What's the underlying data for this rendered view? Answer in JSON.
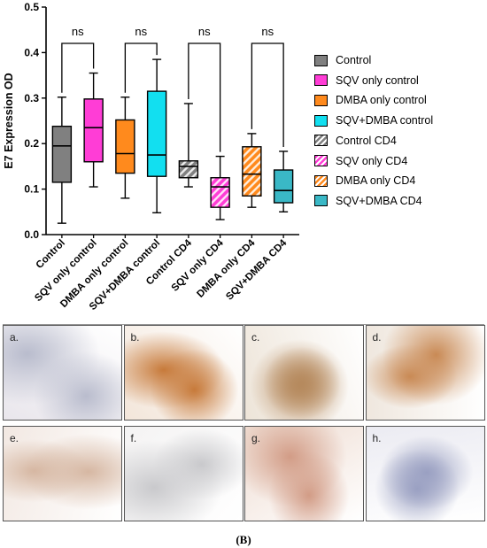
{
  "chart_data": {
    "type": "box",
    "ylabel": "E7 Expression OD",
    "ylim": [
      0,
      0.5
    ],
    "yticks": [
      "0.0",
      "0.1",
      "0.2",
      "0.3",
      "0.4",
      "0.5"
    ],
    "categories": [
      "Control",
      "SQV only control",
      "DMBA only control",
      "SQV+DMBA control",
      "Control CD4",
      "SQV only CD4",
      "DMBA only CD4",
      "SQV+DMBA CD4"
    ],
    "series": [
      {
        "name": "Control",
        "color": "#808080",
        "pattern": "solid",
        "min": 0.025,
        "q1": 0.115,
        "median": 0.195,
        "q3": 0.238,
        "max": 0.302
      },
      {
        "name": "SQV only control",
        "color": "#ff3dd6",
        "pattern": "solid",
        "min": 0.105,
        "q1": 0.16,
        "median": 0.235,
        "q3": 0.298,
        "max": 0.355
      },
      {
        "name": "DMBA only control",
        "color": "#ff8a1d",
        "pattern": "solid",
        "min": 0.08,
        "q1": 0.135,
        "median": 0.178,
        "q3": 0.252,
        "max": 0.302
      },
      {
        "name": "SQV+DMBA control",
        "color": "#12dff0",
        "pattern": "solid",
        "min": 0.048,
        "q1": 0.128,
        "median": 0.175,
        "q3": 0.315,
        "max": 0.385
      },
      {
        "name": "Control CD4",
        "color": "#808080",
        "pattern": "hatch",
        "min": 0.105,
        "q1": 0.125,
        "median": 0.15,
        "q3": 0.162,
        "max": 0.288
      },
      {
        "name": "SQV only CD4",
        "color": "#ff3dd6",
        "pattern": "hatch",
        "min": 0.033,
        "q1": 0.06,
        "median": 0.105,
        "q3": 0.125,
        "max": 0.172
      },
      {
        "name": "DMBA only CD4",
        "color": "#ff8a1d",
        "pattern": "hatch",
        "min": 0.06,
        "q1": 0.085,
        "median": 0.133,
        "q3": 0.193,
        "max": 0.222
      },
      {
        "name": "SQV+DMBA CD4",
        "color": "#3ab8c6",
        "pattern": "solid",
        "min": 0.05,
        "q1": 0.07,
        "median": 0.097,
        "q3": 0.142,
        "max": 0.183
      }
    ],
    "annotations": [
      {
        "text": "ns",
        "from": 0,
        "to": 1
      },
      {
        "text": "ns",
        "from": 2,
        "to": 3
      },
      {
        "text": "ns",
        "from": 4,
        "to": 5
      },
      {
        "text": "ns",
        "from": 6,
        "to": 7
      }
    ],
    "legend": {
      "position": "right"
    }
  },
  "panels": [
    {
      "label": "a.",
      "tone": "#b9bccd",
      "bg": "#e9e6ec"
    },
    {
      "label": "b.",
      "tone": "#c77a3a",
      "bg": "#f3e6da"
    },
    {
      "label": "c.",
      "tone": "#b68a5e",
      "bg": "#ede4d8"
    },
    {
      "label": "d.",
      "tone": "#c98a55",
      "bg": "#efe7de"
    },
    {
      "label": "e.",
      "tone": "#d6b7a2",
      "bg": "#f2e8e2"
    },
    {
      "label": "f.",
      "tone": "#c9c9cc",
      "bg": "#f4f3f3"
    },
    {
      "label": "g.",
      "tone": "#d29c86",
      "bg": "#eedbd0"
    },
    {
      "label": "h.",
      "tone": "#9aa0c2",
      "bg": "#ebebf2"
    }
  ],
  "caption": "(B)"
}
